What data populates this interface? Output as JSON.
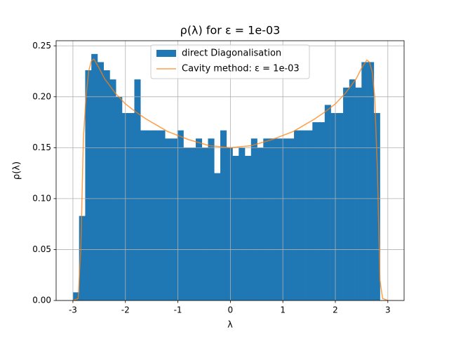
{
  "chart_data": {
    "type": "histogram",
    "title": "ρ(λ) for ε = 1e-03",
    "xlabel": "λ",
    "ylabel": "ρ(λ)",
    "xlim": [
      -3.32,
      3.31
    ],
    "ylim": [
      0,
      0.255
    ],
    "xticks": [
      -3,
      -2,
      -1,
      0,
      1,
      2,
      3
    ],
    "yticks": [
      {
        "value": 0,
        "label": "0.00"
      },
      {
        "value": 0.05,
        "label": "0.05"
      },
      {
        "value": 0.1,
        "label": "0.10"
      },
      {
        "value": 0.15,
        "label": "0.15"
      },
      {
        "value": 0.2,
        "label": "0.20"
      },
      {
        "value": 0.25,
        "label": "0.25"
      }
    ],
    "grid": true,
    "legend": "upper center",
    "series": [
      {
        "name": "direct Diagonalisation",
        "type": "histogram",
        "color": "#1f77b4",
        "bins": [
          -3.0,
          -2.883,
          -2.766,
          -2.649,
          -2.532,
          -2.415,
          -2.298,
          -2.181,
          -2.064,
          -1.947,
          -1.83,
          -1.713,
          -1.596,
          -1.479,
          -1.362,
          -1.245,
          -1.128,
          -1.011,
          -0.894,
          -0.777,
          -0.66,
          -0.543,
          -0.426,
          -0.309,
          -0.192,
          -0.075,
          0.042,
          0.159,
          0.276,
          0.393,
          0.51,
          0.627,
          0.744,
          0.861,
          0.978,
          1.095,
          1.212,
          1.329,
          1.446,
          1.563,
          1.68,
          1.797,
          1.914,
          2.031,
          2.148,
          2.265,
          2.382,
          2.499,
          2.616,
          2.733,
          2.85
        ],
        "values": [
          0.008,
          0.083,
          0.226,
          0.242,
          0.234,
          0.226,
          0.217,
          0.2,
          0.184,
          0.184,
          0.217,
          0.167,
          0.167,
          0.167,
          0.167,
          0.159,
          0.159,
          0.167,
          0.15,
          0.15,
          0.159,
          0.15,
          0.159,
          0.125,
          0.167,
          0.15,
          0.142,
          0.15,
          0.142,
          0.159,
          0.15,
          0.159,
          0.159,
          0.159,
          0.159,
          0.159,
          0.167,
          0.167,
          0.167,
          0.175,
          0.175,
          0.192,
          0.184,
          0.184,
          0.209,
          0.217,
          0.209,
          0.234,
          0.234,
          0.184
        ]
      },
      {
        "name": "Cavity method: ε = 1e-03",
        "type": "line",
        "color": "#ff7f0e",
        "x": [
          -3.0,
          -2.9,
          -2.85,
          -2.8,
          -2.75,
          -2.7,
          -2.65,
          -2.6,
          -2.5,
          -2.4,
          -2.2,
          -2.0,
          -1.8,
          -1.6,
          -1.4,
          -1.2,
          -1.0,
          -0.8,
          -0.6,
          -0.4,
          -0.2,
          0,
          0.2,
          0.4,
          0.6,
          0.8,
          1.0,
          1.2,
          1.4,
          1.6,
          1.8,
          2.0,
          2.2,
          2.4,
          2.5,
          2.6,
          2.65,
          2.7,
          2.75,
          2.8,
          2.85,
          2.9,
          3.0
        ],
        "values": [
          0,
          0.002,
          0.05,
          0.16,
          0.2,
          0.225,
          0.235,
          0.237,
          0.228,
          0.218,
          0.204,
          0.193,
          0.185,
          0.178,
          0.172,
          0.166,
          0.162,
          0.158,
          0.155,
          0.152,
          0.151,
          0.15,
          0.151,
          0.152,
          0.155,
          0.158,
          0.162,
          0.166,
          0.172,
          0.178,
          0.185,
          0.193,
          0.204,
          0.218,
          0.228,
          0.236,
          0.234,
          0.225,
          0.2,
          0.13,
          0.02,
          0.002,
          0
        ]
      }
    ]
  }
}
